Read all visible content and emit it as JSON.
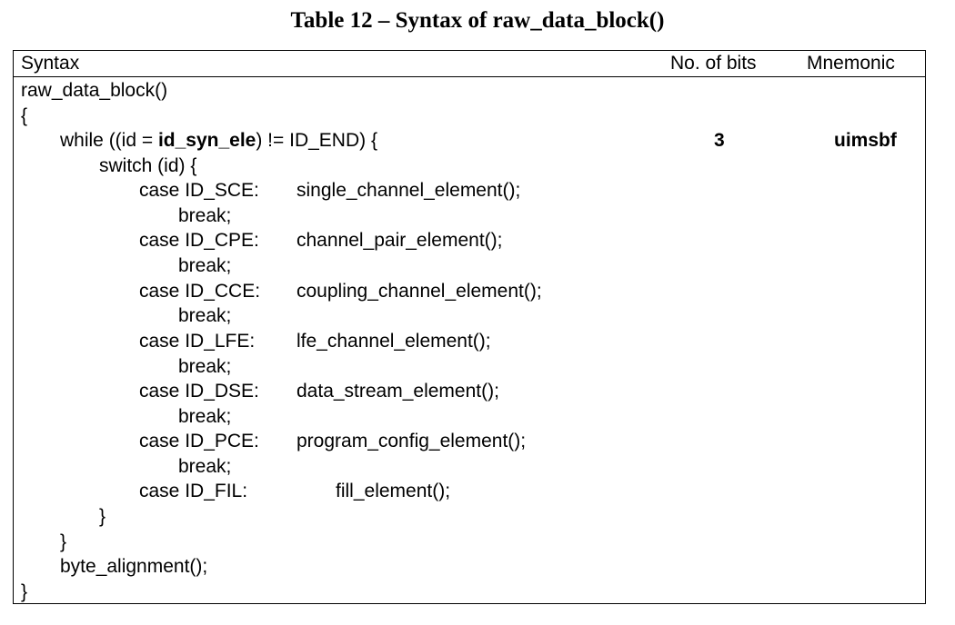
{
  "title": "Table 12 – Syntax of raw_data_block()",
  "header": {
    "syntax": "Syntax",
    "bits": "No. of bits",
    "mnemonic": "Mnemonic"
  },
  "code": {
    "func_decl": "raw_data_block()",
    "open_brace": "{",
    "while_prefix": "while ((id = ",
    "while_element": "id_syn_ele",
    "while_suffix": ") != ID_END) {",
    "while_bits": "3",
    "while_mnemonic": "uimsbf",
    "switch_line": "switch (id) {",
    "cases": [
      {
        "label": "case ID_SCE:",
        "call": "single_channel_element();"
      },
      {
        "label": "case ID_CPE:",
        "call": "channel_pair_element();"
      },
      {
        "label": "case ID_CCE:",
        "call": "coupling_channel_element();"
      },
      {
        "label": "case ID_LFE:",
        "call": "lfe_channel_element();"
      },
      {
        "label": "case ID_DSE:",
        "call": "data_stream_element();"
      },
      {
        "label": "case ID_PCE:",
        "call": "program_config_element();"
      },
      {
        "label": "case ID_FIL:",
        "call": "fill_element();"
      }
    ],
    "break_text": "break;",
    "switch_close": "}",
    "while_close": "}",
    "byte_alignment": "byte_alignment();",
    "close_brace": "}"
  }
}
